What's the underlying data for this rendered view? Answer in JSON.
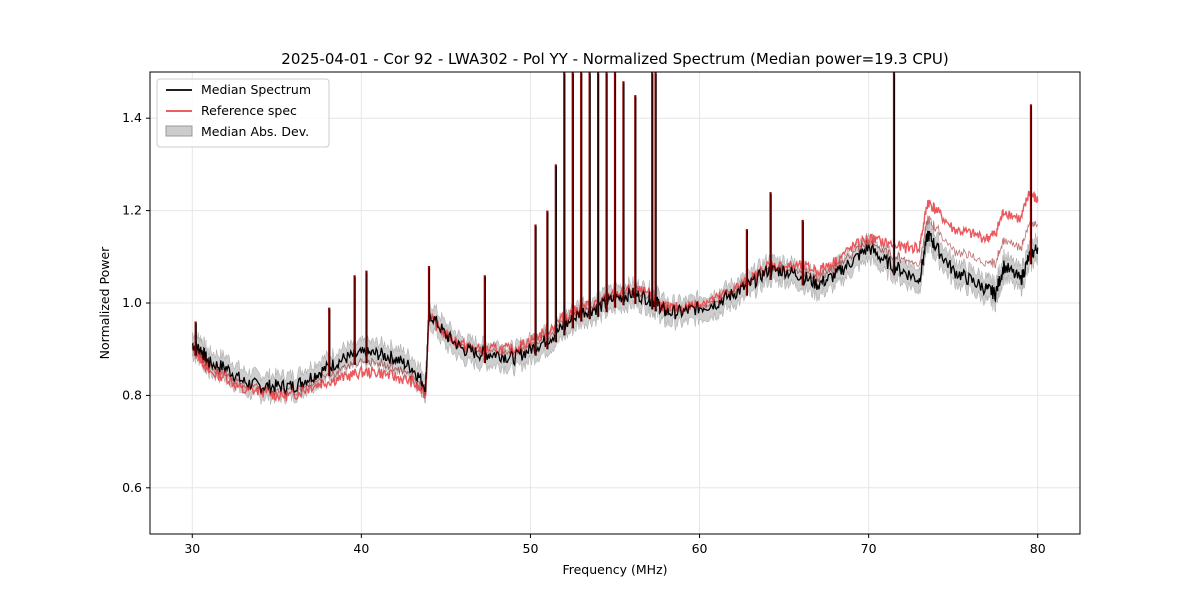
{
  "chart_data": {
    "type": "line",
    "title": "2025-04-01 - Cor 92 - LWA302 - Pol YY - Normalized Spectrum (Median power=19.3 CPU)",
    "xlabel": "Frequency (MHz)",
    "ylabel": "Normalized Power",
    "xlim": [
      27.5,
      82.5
    ],
    "ylim": [
      0.5,
      1.5
    ],
    "xticks": [
      30,
      40,
      50,
      60,
      70,
      80
    ],
    "xtick_labels": [
      "30",
      "40",
      "50",
      "60",
      "70",
      "80"
    ],
    "yticks": [
      0.6,
      0.8,
      1.0,
      1.2,
      1.4
    ],
    "ytick_labels": [
      "0.6",
      "0.8",
      "1.0",
      "1.2",
      "1.4"
    ],
    "grid": true,
    "legend_position": "top-left",
    "legend": [
      {
        "label": "Median Spectrum",
        "color": "#000000",
        "kind": "line"
      },
      {
        "label": "Reference spec",
        "color": "#e8474c",
        "kind": "line"
      },
      {
        "label": "Median Abs. Dev.",
        "color": "#bdbdbd",
        "kind": "band"
      }
    ],
    "series": [
      {
        "name": "Median Spectrum",
        "color": "#000000",
        "x": [
          30,
          30.5,
          31,
          32,
          33,
          34,
          35,
          36,
          37,
          38,
          39,
          40,
          41,
          42,
          43,
          43.8,
          44,
          45,
          46,
          47,
          48,
          49,
          50,
          51,
          52,
          53,
          54,
          55,
          56,
          57,
          57.5,
          58,
          59,
          60,
          61,
          62,
          63,
          64,
          65,
          66,
          67,
          68,
          69,
          70,
          71,
          72,
          73,
          73.5,
          74,
          75,
          76,
          77,
          77.5,
          78,
          79,
          79.5,
          80
        ],
        "y": [
          0.91,
          0.9,
          0.87,
          0.86,
          0.83,
          0.82,
          0.82,
          0.82,
          0.84,
          0.86,
          0.88,
          0.89,
          0.89,
          0.88,
          0.86,
          0.82,
          0.98,
          0.93,
          0.9,
          0.89,
          0.89,
          0.88,
          0.9,
          0.92,
          0.95,
          0.98,
          0.99,
          1.01,
          1.02,
          1.01,
          1.0,
          0.98,
          0.98,
          0.99,
          1.0,
          1.02,
          1.04,
          1.07,
          1.07,
          1.06,
          1.04,
          1.06,
          1.09,
          1.12,
          1.09,
          1.07,
          1.05,
          1.15,
          1.12,
          1.07,
          1.05,
          1.03,
          1.02,
          1.08,
          1.05,
          1.1,
          1.12
        ]
      },
      {
        "name": "Reference spec",
        "color": "#e8474c",
        "x": [
          30,
          30.5,
          31,
          32,
          33,
          34,
          35,
          36,
          37,
          38,
          39,
          40,
          41,
          42,
          43,
          43.8,
          44,
          45,
          46,
          47,
          48,
          49,
          50,
          51,
          52,
          53,
          54,
          55,
          56,
          57,
          57.5,
          58,
          59,
          60,
          61,
          62,
          63,
          64,
          65,
          66,
          67,
          68,
          69,
          70,
          71,
          72,
          73,
          73.5,
          74,
          75,
          76,
          77,
          77.5,
          78,
          79,
          79.5,
          80
        ],
        "y": [
          0.9,
          0.88,
          0.85,
          0.84,
          0.81,
          0.81,
          0.8,
          0.8,
          0.82,
          0.83,
          0.84,
          0.85,
          0.85,
          0.84,
          0.83,
          0.8,
          0.97,
          0.93,
          0.91,
          0.9,
          0.9,
          0.9,
          0.92,
          0.94,
          0.97,
          0.99,
          1.0,
          1.02,
          1.03,
          1.02,
          1.0,
          0.99,
          0.99,
          1.0,
          1.01,
          1.03,
          1.05,
          1.08,
          1.08,
          1.08,
          1.07,
          1.09,
          1.12,
          1.14,
          1.13,
          1.12,
          1.12,
          1.22,
          1.2,
          1.16,
          1.15,
          1.14,
          1.15,
          1.2,
          1.18,
          1.24,
          1.22
        ]
      }
    ],
    "band": {
      "name": "Median Abs. Dev.",
      "half_width": 0.025
    },
    "spikes": [
      {
        "x": 30.2,
        "y": 0.96
      },
      {
        "x": 38.1,
        "y": 0.99
      },
      {
        "x": 39.6,
        "y": 1.06
      },
      {
        "x": 40.3,
        "y": 1.07
      },
      {
        "x": 44.0,
        "y": 1.08
      },
      {
        "x": 47.3,
        "y": 1.06
      },
      {
        "x": 50.3,
        "y": 1.17
      },
      {
        "x": 51.0,
        "y": 1.2
      },
      {
        "x": 51.5,
        "y": 1.3
      },
      {
        "x": 52.0,
        "y": 1.5
      },
      {
        "x": 52.5,
        "y": 1.5
      },
      {
        "x": 53.0,
        "y": 1.5
      },
      {
        "x": 53.5,
        "y": 1.5
      },
      {
        "x": 54.0,
        "y": 1.5
      },
      {
        "x": 54.5,
        "y": 1.5
      },
      {
        "x": 55.0,
        "y": 1.5
      },
      {
        "x": 55.5,
        "y": 1.48
      },
      {
        "x": 56.2,
        "y": 1.45
      },
      {
        "x": 57.2,
        "y": 1.5
      },
      {
        "x": 57.4,
        "y": 1.5
      },
      {
        "x": 62.8,
        "y": 1.16
      },
      {
        "x": 64.2,
        "y": 1.24
      },
      {
        "x": 66.1,
        "y": 1.18
      },
      {
        "x": 71.5,
        "y": 1.5
      },
      {
        "x": 79.6,
        "y": 1.43
      }
    ]
  }
}
